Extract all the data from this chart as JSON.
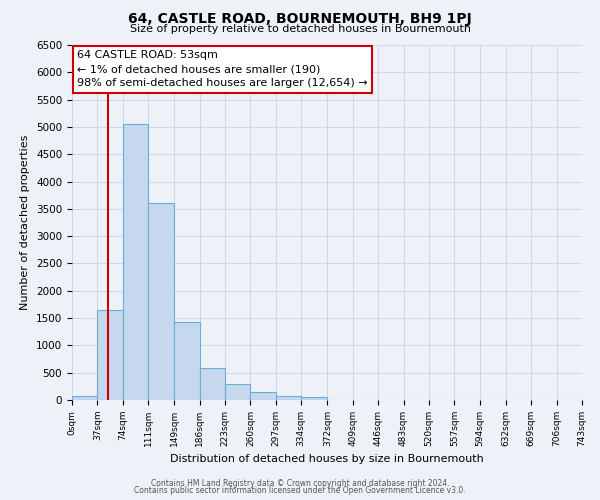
{
  "title": "64, CASTLE ROAD, BOURNEMOUTH, BH9 1PJ",
  "subtitle": "Size of property relative to detached houses in Bournemouth",
  "xlabel": "Distribution of detached houses by size in Bournemouth",
  "ylabel": "Number of detached properties",
  "bar_values": [
    75,
    1650,
    5050,
    3600,
    1420,
    580,
    300,
    150,
    75,
    50,
    0,
    0,
    0,
    0,
    0,
    0,
    0,
    0,
    0,
    0
  ],
  "bin_edges": [
    0,
    37,
    74,
    111,
    149,
    186,
    223,
    260,
    297,
    334,
    372,
    409,
    446,
    483,
    520,
    557,
    594,
    632,
    669,
    706,
    743
  ],
  "tick_labels": [
    "0sqm",
    "37sqm",
    "74sqm",
    "111sqm",
    "149sqm",
    "186sqm",
    "223sqm",
    "260sqm",
    "297sqm",
    "334sqm",
    "372sqm",
    "409sqm",
    "446sqm",
    "483sqm",
    "520sqm",
    "557sqm",
    "594sqm",
    "632sqm",
    "669sqm",
    "706sqm",
    "743sqm"
  ],
  "bar_color": "#c5d8ed",
  "bar_edge_color": "#6aaed6",
  "property_line_x": 53,
  "property_line_color": "#cc0000",
  "annotation_title": "64 CASTLE ROAD: 53sqm",
  "annotation_line1": "← 1% of detached houses are smaller (190)",
  "annotation_line2": "98% of semi-detached houses are larger (12,654) →",
  "annotation_box_color": "#ffffff",
  "annotation_box_edge_color": "#cc0000",
  "ylim": [
    0,
    6500
  ],
  "yticks": [
    0,
    500,
    1000,
    1500,
    2000,
    2500,
    3000,
    3500,
    4000,
    4500,
    5000,
    5500,
    6000,
    6500
  ],
  "grid_color": "#d0d8e8",
  "background_color": "#eef2f8",
  "footer_line1": "Contains HM Land Registry data © Crown copyright and database right 2024.",
  "footer_line2": "Contains public sector information licensed under the Open Government Licence v3.0."
}
